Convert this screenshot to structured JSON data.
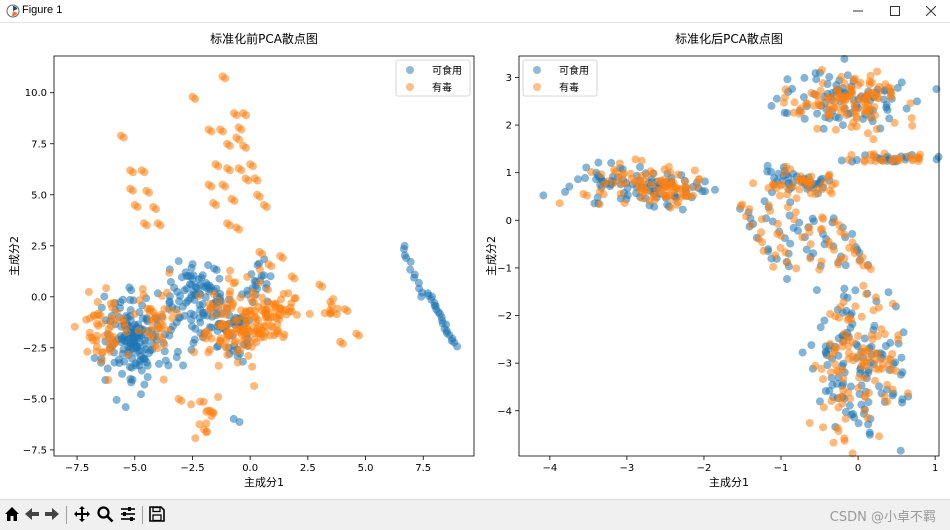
{
  "window": {
    "title": "Figure 1",
    "app_icon": "matplotlib-icon",
    "controls": [
      "minimize-icon",
      "maximize-icon",
      "close-icon"
    ]
  },
  "toolbar": {
    "tools": [
      "home-icon",
      "back-arrow-icon",
      "forward-arrow-icon",
      "pan-icon",
      "zoom-icon",
      "configure-subplots-icon",
      "save-icon"
    ],
    "watermark": "CSDN @小卓不羁"
  },
  "colors": {
    "edible": "#1f77b4",
    "poisonous": "#ff7f0e"
  },
  "chart_data": [
    {
      "type": "scatter",
      "title": "标准化前PCA散点图",
      "xlabel": "主成分1",
      "ylabel": "主成分2",
      "xlim": [
        -8.5,
        9.7
      ],
      "ylim": [
        -7.8,
        11.8
      ],
      "xticks": [
        -7.5,
        -5.0,
        -2.5,
        0.0,
        2.5,
        5.0,
        7.5
      ],
      "xtick_labels": [
        "−7.5",
        "−5.0",
        "−2.5",
        "0.0",
        "2.5",
        "5.0",
        "7.5"
      ],
      "yticks": [
        -7.5,
        -5.0,
        -2.5,
        0.0,
        2.5,
        5.0,
        7.5,
        10.0
      ],
      "ytick_labels": [
        "−7.5",
        "−5.0",
        "−2.5",
        "0.0",
        "2.5",
        "5.0",
        "7.5",
        "10.0"
      ],
      "legend": {
        "placement": "top-right",
        "entries": [
          "可食用",
          "有毒"
        ]
      },
      "series": [
        {
          "name": "可食用",
          "color": "#1f77b4",
          "clusters": [
            {
              "cx": -5.0,
              "cy": -2.0,
              "rx": 1.2,
              "ry": 2.0,
              "n": 160
            },
            {
              "cx": -2.3,
              "cy": -0.3,
              "rx": 1.3,
              "ry": 1.8,
              "n": 110
            },
            {
              "cx": -0.8,
              "cy": -1.8,
              "rx": 0.8,
              "ry": 1.5,
              "n": 40
            },
            {
              "cx": 0.3,
              "cy": 0.8,
              "rx": 0.5,
              "ry": 1.0,
              "n": 20
            },
            {
              "cx": -0.6,
              "cy": -6.1,
              "rx": 0.15,
              "ry": 0.15,
              "n": 2
            }
          ],
          "line_segments": [
            {
              "x1": 6.6,
              "y1": 2.5,
              "x2": 7.5,
              "y2": 0.0,
              "n": 12
            },
            {
              "x1": 7.7,
              "y1": 0.2,
              "x2": 8.9,
              "y2": -2.4,
              "n": 22
            }
          ]
        },
        {
          "name": "有毒",
          "color": "#ff7f0e",
          "clusters": [
            {
              "cx": -6.5,
              "cy": -1.5,
              "rx": 0.9,
              "ry": 1.4,
              "n": 50
            },
            {
              "cx": -4.0,
              "cy": -1.0,
              "rx": 1.0,
              "ry": 1.8,
              "n": 40
            },
            {
              "cx": -0.8,
              "cy": -1.2,
              "rx": 1.2,
              "ry": 1.8,
              "n": 110
            },
            {
              "cx": 1.0,
              "cy": -0.8,
              "rx": 0.9,
              "ry": 1.3,
              "n": 70
            },
            {
              "cx": 3.6,
              "cy": -0.6,
              "rx": 0.6,
              "ry": 0.9,
              "n": 10
            },
            {
              "cx": -2.0,
              "cy": -5.8,
              "rx": 0.6,
              "ry": 0.9,
              "n": 14
            }
          ],
          "points": [
            [
              -5.6,
              7.9
            ],
            [
              -2.5,
              9.8
            ],
            [
              -1.2,
              10.8
            ],
            [
              -1.8,
              8.2
            ],
            [
              -1.3,
              8.2
            ],
            [
              -1.0,
              7.5
            ],
            [
              -0.6,
              7.8
            ],
            [
              -0.7,
              9.0
            ],
            [
              -0.3,
              9.0
            ],
            [
              -0.5,
              8.3
            ],
            [
              -0.3,
              7.4
            ],
            [
              -1.5,
              6.5
            ],
            [
              -1.0,
              6.3
            ],
            [
              -0.5,
              6.3
            ],
            [
              0.0,
              6.5
            ],
            [
              -1.8,
              5.5
            ],
            [
              -1.2,
              5.5
            ],
            [
              -0.2,
              5.8
            ],
            [
              0.2,
              5.8
            ],
            [
              -1.6,
              4.6
            ],
            [
              -0.8,
              4.8
            ],
            [
              0.3,
              5.0
            ],
            [
              0.6,
              4.5
            ],
            [
              -5.2,
              6.2
            ],
            [
              -4.7,
              6.2
            ],
            [
              -5.2,
              5.3
            ],
            [
              -4.5,
              5.2
            ],
            [
              -5.0,
              4.5
            ],
            [
              -4.2,
              4.4
            ],
            [
              -4.6,
              3.6
            ],
            [
              -4.0,
              3.6
            ],
            [
              -1.0,
              3.6
            ],
            [
              -0.6,
              3.4
            ],
            [
              0.4,
              2.2
            ],
            [
              0.8,
              1.6
            ],
            [
              1.3,
              2.0
            ],
            [
              1.8,
              1.0
            ],
            [
              3.0,
              0.6
            ],
            [
              4.1,
              -0.6
            ],
            [
              4.6,
              -1.8
            ],
            [
              3.9,
              -2.2
            ],
            [
              -3.1,
              -5.0
            ],
            [
              -2.0,
              -6.5
            ]
          ]
        }
      ]
    },
    {
      "type": "scatter",
      "title": "标准化后PCA散点图",
      "xlabel": "主成分1",
      "ylabel": "主成分2",
      "xlim": [
        -4.4,
        1.05
      ],
      "ylim": [
        -4.95,
        3.45
      ],
      "xticks": [
        -4,
        -3,
        -2,
        -1,
        0,
        1
      ],
      "xtick_labels": [
        "−4",
        "−3",
        "−2",
        "−1",
        "0",
        "1"
      ],
      "yticks": [
        -4,
        -3,
        -2,
        -1,
        0,
        1,
        2,
        3
      ],
      "ytick_labels": [
        "−4",
        "−3",
        "−2",
        "−1",
        "0",
        "1",
        "2",
        "3"
      ],
      "legend": {
        "placement": "top-left",
        "entries": [
          "可食用",
          "有毒"
        ]
      },
      "series": [
        {
          "name": "可食用",
          "color": "#1f77b4",
          "clusters": [
            {
              "cx": -0.2,
              "cy": 2.5,
              "rx": 0.75,
              "ry": 0.55,
              "n": 90
            },
            {
              "cx": 0.45,
              "cy": 1.3,
              "rx": 0.45,
              "ry": 0.1,
              "n": 20
            },
            {
              "cx": -0.8,
              "cy": 0.8,
              "rx": 0.5,
              "ry": 0.25,
              "n": 40
            },
            {
              "cx": -3.2,
              "cy": 0.8,
              "rx": 0.6,
              "ry": 0.45,
              "n": 50
            },
            {
              "cx": -2.4,
              "cy": 0.6,
              "rx": 0.5,
              "ry": 0.4,
              "n": 40
            },
            {
              "cx": 0.0,
              "cy": -3.0,
              "rx": 0.6,
              "ry": 1.4,
              "n": 120
            }
          ],
          "line_segments": [
            {
              "x1": -1.5,
              "y1": 0.3,
              "x2": -1.1,
              "y2": -0.9,
              "n": 10
            },
            {
              "x1": -1.2,
              "y1": 0.4,
              "x2": -0.8,
              "y2": -1.0,
              "n": 10
            },
            {
              "x1": -0.9,
              "y1": 0.3,
              "x2": -0.5,
              "y2": -1.0,
              "n": 10
            },
            {
              "x1": -0.6,
              "y1": 0.1,
              "x2": -0.2,
              "y2": -1.0,
              "n": 10
            },
            {
              "x1": -0.3,
              "y1": 0.0,
              "x2": 0.1,
              "y2": -1.0,
              "n": 10
            }
          ]
        },
        {
          "name": "有毒",
          "color": "#ff7f0e",
          "clusters": [
            {
              "cx": -0.1,
              "cy": 2.5,
              "rx": 0.7,
              "ry": 0.5,
              "n": 110
            },
            {
              "cx": 0.45,
              "cy": 1.3,
              "rx": 0.45,
              "ry": 0.1,
              "n": 25
            },
            {
              "cx": -0.8,
              "cy": 0.8,
              "rx": 0.5,
              "ry": 0.25,
              "n": 40
            },
            {
              "cx": -3.0,
              "cy": 0.8,
              "rx": 0.6,
              "ry": 0.4,
              "n": 50
            },
            {
              "cx": -2.3,
              "cy": 0.7,
              "rx": 0.55,
              "ry": 0.35,
              "n": 45
            },
            {
              "cx": 0.0,
              "cy": -3.0,
              "rx": 0.55,
              "ry": 1.3,
              "n": 110
            }
          ],
          "line_segments": [
            {
              "x1": -1.5,
              "y1": 0.3,
              "x2": -1.1,
              "y2": -0.9,
              "n": 10
            },
            {
              "x1": -1.2,
              "y1": 0.4,
              "x2": -0.8,
              "y2": -1.0,
              "n": 10
            },
            {
              "x1": -0.9,
              "y1": 0.3,
              "x2": -0.5,
              "y2": -1.0,
              "n": 10
            },
            {
              "x1": -0.6,
              "y1": 0.1,
              "x2": -0.2,
              "y2": -1.0,
              "n": 10
            },
            {
              "x1": -0.3,
              "y1": 0.0,
              "x2": 0.1,
              "y2": -1.0,
              "n": 10
            }
          ]
        }
      ]
    }
  ]
}
